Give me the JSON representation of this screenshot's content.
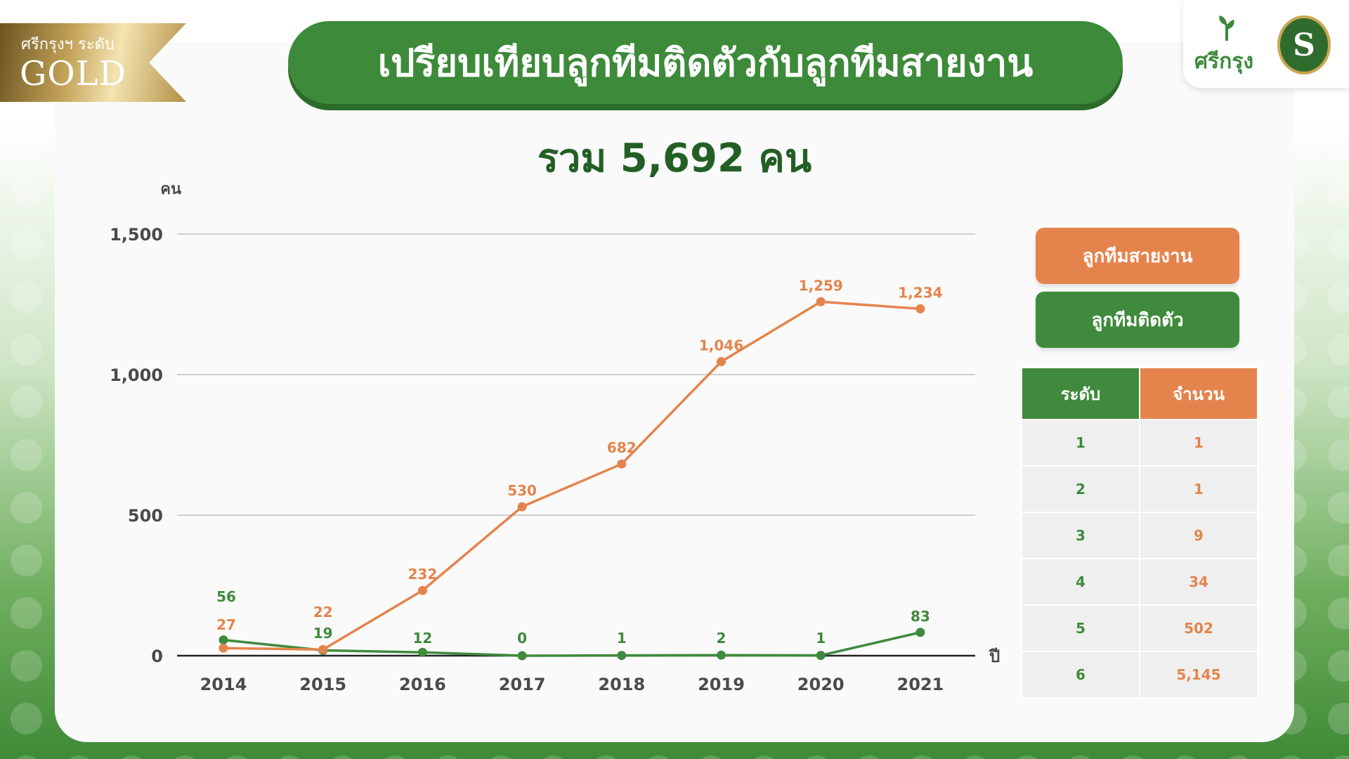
{
  "badge": {
    "small": "ศรีกรุงฯ ระดับ",
    "big": "GOLD"
  },
  "header": {
    "title": "เปรียบเทียบลูกทีมติดตัวกับลูกทีมสายงาน"
  },
  "logo": {
    "text": "ศรีกรุง",
    "seal_letter": "S"
  },
  "summary": {
    "total": "รวม 5,692 คน"
  },
  "colors": {
    "orange": "#e4844c",
    "green": "#3f8a3c",
    "dark_green": "#235f25"
  },
  "chart_data": {
    "type": "line",
    "ylabel": "คน",
    "xlabel": "ปี",
    "x": [
      "2014",
      "2015",
      "2016",
      "2017",
      "2018",
      "2019",
      "2020",
      "2021"
    ],
    "ylim": [
      0,
      1500
    ],
    "yticks": [
      0,
      500,
      1000,
      1500
    ],
    "ytick_labels": [
      "0",
      "500",
      "1,000",
      "1,500"
    ],
    "grid": true,
    "legend_placement": "right",
    "series": [
      {
        "name": "ลูกทีมสายงาน",
        "color": "#e4844c",
        "values": [
          27,
          22,
          232,
          530,
          682,
          1046,
          1259,
          1234
        ],
        "labels": [
          "27",
          "22",
          "232",
          "530",
          "682",
          "1,046",
          "1,259",
          "1,234"
        ]
      },
      {
        "name": "ลูกทีมติดตัว",
        "color": "#3f8a3c",
        "values": [
          56,
          19,
          12,
          0,
          1,
          2,
          1,
          83
        ],
        "labels": [
          "56",
          "19",
          "12",
          "0",
          "1",
          "2",
          "1",
          "83"
        ]
      }
    ]
  },
  "level_table": {
    "headers": [
      "ระดับ",
      "จำนวน"
    ],
    "rows": [
      [
        "1",
        "1"
      ],
      [
        "2",
        "1"
      ],
      [
        "3",
        "9"
      ],
      [
        "4",
        "34"
      ],
      [
        "5",
        "502"
      ],
      [
        "6",
        "5,145"
      ]
    ]
  }
}
